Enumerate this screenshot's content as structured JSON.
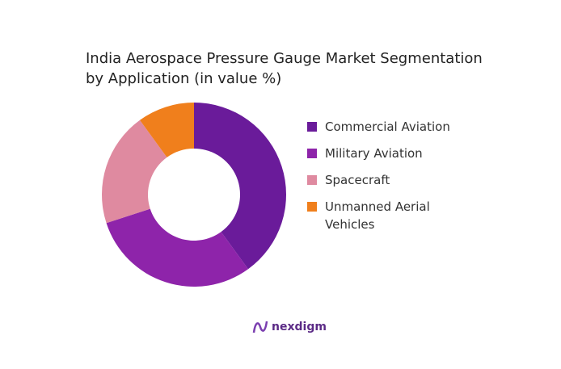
{
  "chart_data": {
    "type": "donut",
    "title": "India Aerospace Pressure Gauge Market Segmentation by Application (in value %)",
    "categories": [
      "Commercial Aviation",
      "Military Aviation",
      "Spacecraft",
      "Unmanned Aerial Vehicles"
    ],
    "values": [
      40,
      30,
      20,
      10
    ],
    "colors": [
      "#6a1b9a",
      "#8e24aa",
      "#df8aa0",
      "#f07f1c"
    ],
    "legend": "right"
  },
  "logo": "nexdigm"
}
